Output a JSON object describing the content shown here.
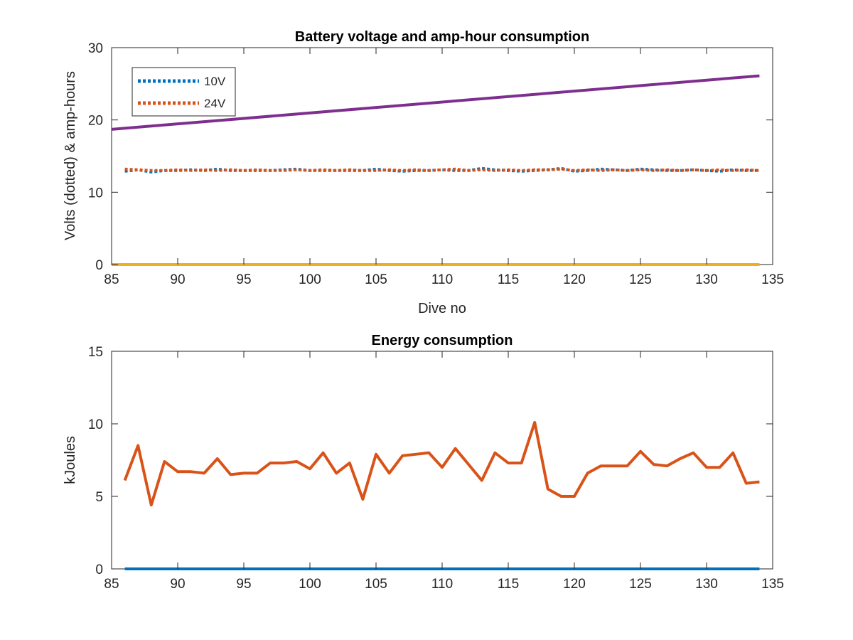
{
  "chart_data": [
    {
      "type": "line",
      "title": "Battery voltage and amp-hour consumption",
      "xlabel": "Dive no",
      "ylabel": "Volts (dotted) & amp-hours",
      "xlim": [
        85,
        135
      ],
      "ylim": [
        0,
        30
      ],
      "xticks": [
        85,
        90,
        95,
        100,
        105,
        110,
        115,
        120,
        125,
        130,
        135
      ],
      "yticks": [
        0,
        10,
        20,
        30
      ],
      "grid": false,
      "legend_position": "top-left",
      "series": [
        {
          "name": "10V",
          "style": "dotted",
          "color": "#0072BD",
          "x": [
            86,
            87,
            88,
            89,
            90,
            91,
            92,
            93,
            94,
            95,
            96,
            97,
            98,
            99,
            100,
            101,
            102,
            103,
            104,
            105,
            106,
            107,
            108,
            109,
            110,
            111,
            112,
            113,
            114,
            115,
            116,
            117,
            118,
            119,
            120,
            121,
            122,
            123,
            124,
            125,
            126,
            127,
            128,
            129,
            130,
            131,
            132,
            133,
            134
          ],
          "y": [
            12.9,
            13.1,
            12.8,
            13.0,
            13.0,
            13.1,
            13.0,
            13.2,
            13.0,
            13.0,
            13.0,
            13.0,
            13.1,
            13.2,
            13.0,
            13.0,
            13.0,
            13.0,
            13.0,
            13.2,
            13.0,
            12.9,
            13.0,
            13.0,
            13.1,
            13.0,
            13.0,
            13.3,
            13.1,
            13.0,
            12.9,
            13.0,
            13.1,
            13.3,
            12.9,
            13.0,
            13.2,
            13.1,
            13.0,
            13.2,
            13.1,
            13.0,
            13.0,
            13.1,
            13.0,
            12.9,
            13.1,
            13.0,
            13.0
          ]
        },
        {
          "name": "24V",
          "style": "dotted",
          "color": "#D95319",
          "x": [
            86,
            87,
            88,
            89,
            90,
            91,
            92,
            93,
            94,
            95,
            96,
            97,
            98,
            99,
            100,
            101,
            102,
            103,
            104,
            105,
            106,
            107,
            108,
            109,
            110,
            111,
            112,
            113,
            114,
            115,
            116,
            117,
            118,
            119,
            120,
            121,
            122,
            123,
            124,
            125,
            126,
            127,
            128,
            129,
            130,
            131,
            132,
            133,
            134
          ],
          "y": [
            13.2,
            13.1,
            13.0,
            13.0,
            13.1,
            13.0,
            13.1,
            13.0,
            13.1,
            13.0,
            13.1,
            13.0,
            13.0,
            13.1,
            13.0,
            13.1,
            13.0,
            13.1,
            13.0,
            13.0,
            13.1,
            13.0,
            13.1,
            13.0,
            13.1,
            13.2,
            13.0,
            13.1,
            13.0,
            13.1,
            13.0,
            13.1,
            13.1,
            13.2,
            13.0,
            13.1,
            13.0,
            13.1,
            13.0,
            13.1,
            13.0,
            13.1,
            13.0,
            13.1,
            13.0,
            13.1,
            13.0,
            13.1,
            13.0
          ]
        },
        {
          "style": "solid",
          "color": "#7E2F8E",
          "x": [
            85,
            134
          ],
          "y": [
            18.7,
            26.1
          ]
        },
        {
          "style": "solid",
          "color": "#EDB120",
          "x": [
            85,
            134
          ],
          "y": [
            0,
            0
          ]
        }
      ]
    },
    {
      "type": "line",
      "title": "Energy consumption",
      "xlabel": "",
      "ylabel": "kJoules",
      "xlim": [
        85,
        135
      ],
      "ylim": [
        0,
        15
      ],
      "xticks": [
        85,
        90,
        95,
        100,
        105,
        110,
        115,
        120,
        125,
        130,
        135
      ],
      "yticks": [
        0,
        5,
        10,
        15
      ],
      "grid": false,
      "series": [
        {
          "style": "solid",
          "color": "#D95319",
          "x": [
            86,
            87,
            88,
            89,
            90,
            91,
            92,
            93,
            94,
            95,
            96,
            97,
            98,
            99,
            100,
            101,
            102,
            103,
            104,
            105,
            106,
            107,
            108,
            109,
            110,
            111,
            112,
            113,
            114,
            115,
            116,
            117,
            118,
            119,
            120,
            121,
            122,
            123,
            124,
            125,
            126,
            127,
            128,
            129,
            130,
            131,
            132,
            133,
            134
          ],
          "y": [
            6.1,
            8.5,
            4.4,
            7.4,
            6.7,
            6.7,
            6.6,
            7.6,
            6.5,
            6.6,
            6.6,
            7.3,
            7.3,
            7.4,
            6.9,
            8.0,
            6.6,
            7.3,
            4.8,
            7.9,
            6.6,
            7.8,
            7.9,
            8.0,
            7.0,
            8.3,
            7.2,
            6.1,
            8.0,
            7.3,
            7.3,
            10.1,
            5.5,
            5.0,
            5.0,
            6.6,
            7.1,
            7.1,
            7.1,
            8.1,
            7.2,
            7.1,
            7.6,
            8.0,
            7.0,
            7.0,
            8.0,
            5.9,
            6.0
          ]
        },
        {
          "style": "solid",
          "color": "#0072BD",
          "x": [
            86,
            134
          ],
          "y": [
            0,
            0
          ]
        }
      ]
    }
  ]
}
